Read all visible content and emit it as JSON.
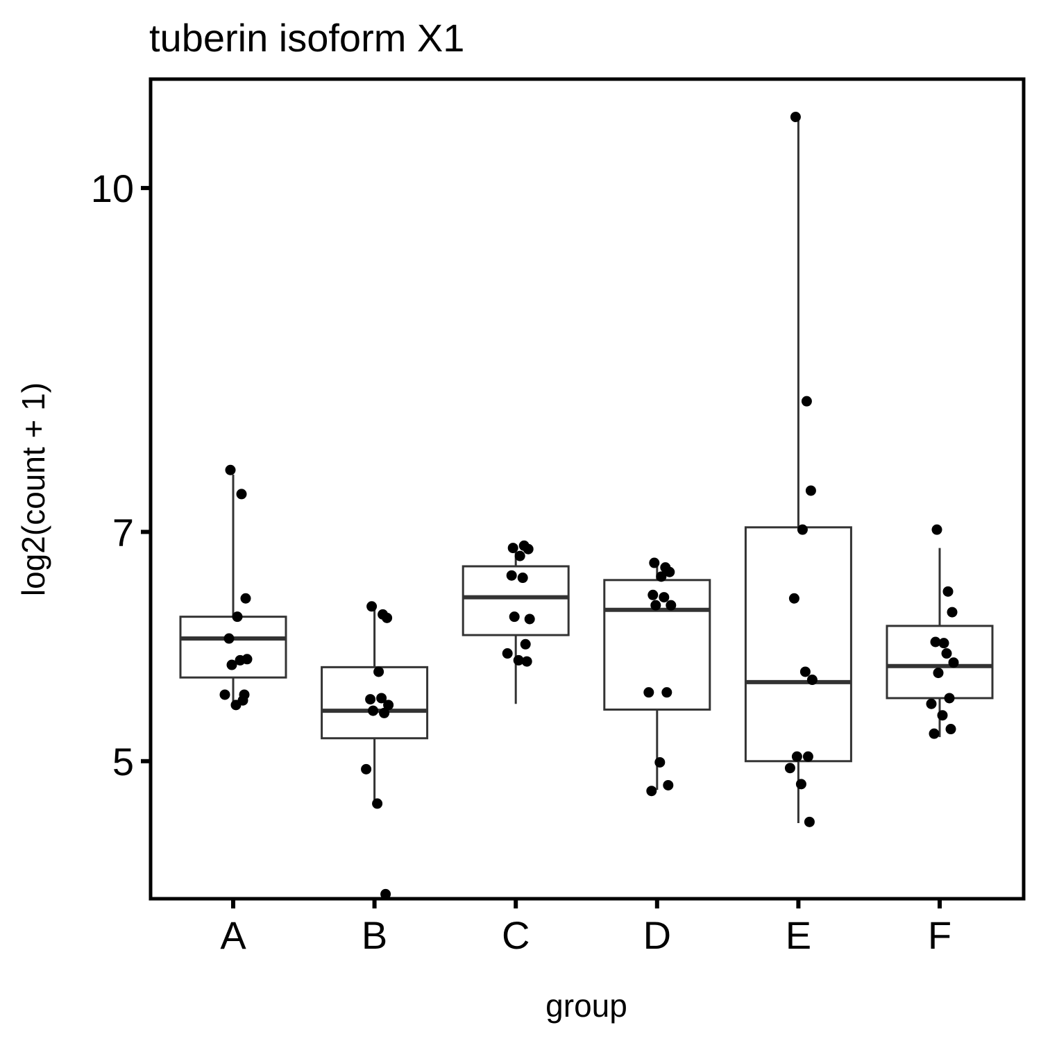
{
  "chart_data": {
    "type": "boxplot",
    "title": "tuberin isoform X1",
    "xlabel": "group",
    "ylabel": "log2(count + 1)",
    "categories": [
      "A",
      "B",
      "C",
      "D",
      "E",
      "F"
    ],
    "yticks": [
      5,
      7,
      10
    ],
    "ylim": [
      3.8,
      10.95
    ],
    "grid": false,
    "legend": "none",
    "boxes": [
      {
        "group": "A",
        "whisker_low": 5.5,
        "q1": 5.73,
        "median": 6.07,
        "q3": 6.26,
        "whisker_high": 7.5
      },
      {
        "group": "B",
        "whisker_low": 4.62,
        "q1": 5.2,
        "median": 5.44,
        "q3": 5.82,
        "whisker_high": 6.36
      },
      {
        "group": "C",
        "whisker_low": 5.5,
        "q1": 6.1,
        "median": 6.43,
        "q3": 6.7,
        "whisker_high": 6.87
      },
      {
        "group": "D",
        "whisker_low": 4.75,
        "q1": 5.45,
        "median": 6.32,
        "q3": 6.58,
        "whisker_high": 6.74
      },
      {
        "group": "E",
        "whisker_low": 4.46,
        "q1": 5.0,
        "median": 5.69,
        "q3": 7.04,
        "whisker_high": 10.62
      },
      {
        "group": "F",
        "whisker_low": 5.21,
        "q1": 5.55,
        "median": 5.83,
        "q3": 6.18,
        "whisker_high": 6.86
      }
    ],
    "points": [
      {
        "group": "A",
        "values": [
          7.54,
          7.33,
          6.42,
          6.26,
          6.07,
          5.88,
          5.89,
          5.84,
          5.53,
          5.58,
          5.49,
          5.58
        ]
      },
      {
        "group": "B",
        "values": [
          6.35,
          6.28,
          6.25,
          5.78,
          5.54,
          5.55,
          5.49,
          5.44,
          5.42,
          4.93,
          4.63,
          3.84
        ]
      },
      {
        "group": "C",
        "values": [
          6.86,
          6.88,
          6.85,
          6.79,
          6.62,
          6.6,
          6.24,
          6.26,
          6.02,
          5.94,
          5.88,
          5.87
        ]
      },
      {
        "group": "D",
        "values": [
          6.73,
          6.69,
          6.65,
          6.61,
          6.45,
          6.43,
          6.36,
          6.36,
          5.6,
          5.6,
          4.99,
          4.79,
          4.74
        ]
      },
      {
        "group": "E",
        "values": [
          10.62,
          8.14,
          7.36,
          7.02,
          6.42,
          5.78,
          5.71,
          5.04,
          5.04,
          4.94,
          4.8,
          4.47
        ]
      },
      {
        "group": "F",
        "values": [
          7.02,
          6.48,
          6.3,
          6.03,
          6.04,
          5.94,
          5.86,
          5.77,
          5.55,
          5.5,
          5.4,
          5.28,
          5.24
        ]
      }
    ]
  }
}
